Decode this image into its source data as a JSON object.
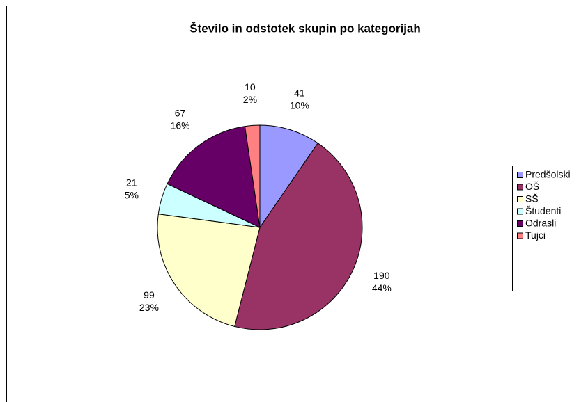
{
  "chart_data": {
    "type": "pie",
    "title": "Število in odstotek skupin po kategorijah",
    "categories": [
      "Predšolski",
      "OŠ",
      "SŠ",
      "Študenti",
      "Odrasli",
      "Tujci"
    ],
    "values": [
      41,
      190,
      99,
      21,
      67,
      10
    ],
    "percent_labels": [
      "10%",
      "44%",
      "23%",
      "5%",
      "16%",
      "2%"
    ],
    "colors": [
      "#9999ff",
      "#993366",
      "#ffffcc",
      "#ccffff",
      "#660066",
      "#ff8080"
    ],
    "legend": "right"
  }
}
